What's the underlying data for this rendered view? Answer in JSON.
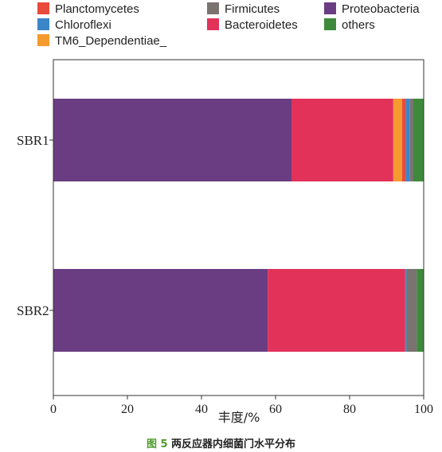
{
  "chart_data": {
    "type": "bar",
    "orientation": "horizontal",
    "stacked": true,
    "categories": [
      "SBR1",
      "SBR2"
    ],
    "xlabel": "丰度/%",
    "ylabel": "",
    "xlim": [
      0,
      100
    ],
    "xticks": [
      0,
      20,
      40,
      60,
      80,
      100
    ],
    "grid": false,
    "legend_position": "top",
    "series": [
      {
        "name": "Proteobacteria",
        "color": "#6a3d82",
        "values": [
          64.3,
          57.9
        ]
      },
      {
        "name": "Bacteroidetes",
        "color": "#e2325a",
        "values": [
          27.5,
          37.1
        ]
      },
      {
        "name": "TM6_Dependentiae_",
        "color": "#f59a2e",
        "values": [
          2.4,
          0.0
        ]
      },
      {
        "name": "Planctomycetes",
        "color": "#e84a3c",
        "values": [
          1.0,
          0.0
        ]
      },
      {
        "name": "Chloroflexi",
        "color": "#3a86c8",
        "values": [
          1.0,
          0.4
        ]
      },
      {
        "name": "Firmicutes",
        "color": "#7a7370",
        "values": [
          1.0,
          2.7
        ]
      },
      {
        "name": "others",
        "color": "#3e8a3c",
        "values": [
          2.8,
          1.9
        ]
      }
    ]
  },
  "caption": {
    "figure_number": "图 5",
    "text": "两反应器内细菌门水平分布"
  }
}
